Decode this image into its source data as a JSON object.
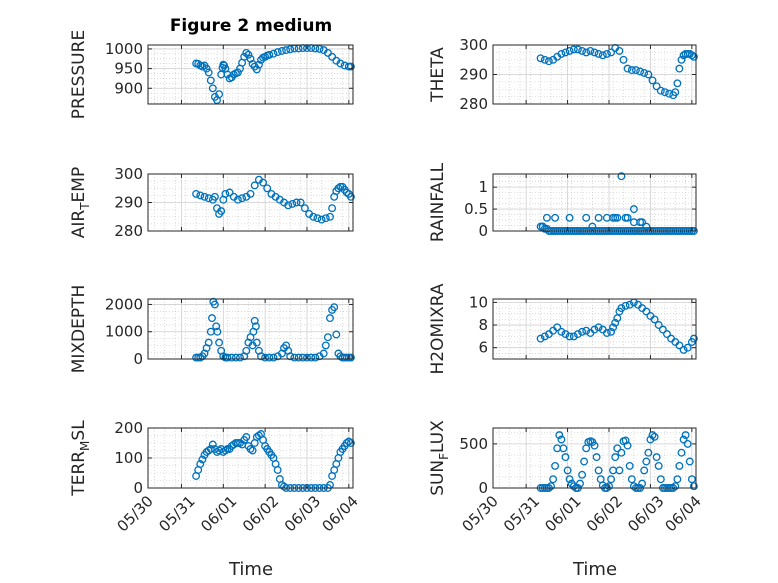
{
  "figure_title": "Figure 2 medium",
  "colors": {
    "marker": "#0072BD",
    "axis": "#262626",
    "grid": "#a0a0a0"
  },
  "chart_data": [
    {
      "type": "scatter",
      "ylabel": "PRESSURE",
      "ylim": [
        860,
        1010
      ],
      "yticks": [
        900,
        950,
        1000
      ],
      "ytick_labels": [
        "900",
        "950",
        "1000"
      ],
      "x": [
        0.25,
        0.3,
        0.35,
        0.4,
        0.45,
        0.5,
        0.55,
        0.6,
        0.65,
        0.7,
        0.75,
        0.8,
        0.85,
        0.88,
        0.9,
        0.92,
        0.95,
        1.0,
        1.05,
        1.1,
        1.15,
        1.2,
        1.25,
        1.3,
        1.35,
        1.4,
        1.45,
        1.5,
        1.55,
        1.6,
        1.65,
        1.7,
        1.75,
        1.8,
        1.85,
        1.9,
        1.95,
        2.0,
        2.1,
        2.2,
        2.3,
        2.4,
        2.5,
        2.6,
        2.7,
        2.8,
        2.9,
        3.0,
        3.1,
        3.2,
        3.3,
        3.4,
        3.5,
        3.6,
        3.7,
        3.8,
        3.9,
        3.95
      ],
      "y": [
        963,
        962,
        958,
        955,
        958,
        950,
        940,
        920,
        900,
        878,
        870,
        885,
        935,
        952,
        960,
        958,
        950,
        935,
        925,
        928,
        935,
        938,
        940,
        950,
        965,
        980,
        990,
        985,
        975,
        962,
        955,
        948,
        960,
        972,
        978,
        980,
        983,
        985,
        988,
        992,
        995,
        997,
        999,
        1001,
        1001,
        1002,
        1002,
        1002,
        1001,
        1000,
        997,
        990,
        980,
        970,
        963,
        958,
        955,
        955
      ]
    },
    {
      "type": "scatter",
      "ylabel": "THETA",
      "ylim": [
        280,
        300
      ],
      "yticks": [
        280,
        290,
        300
      ],
      "ytick_labels": [
        "280",
        "290",
        "300"
      ],
      "x": [
        0.25,
        0.35,
        0.45,
        0.55,
        0.65,
        0.75,
        0.85,
        0.95,
        1.05,
        1.15,
        1.25,
        1.35,
        1.45,
        1.55,
        1.65,
        1.75,
        1.85,
        1.95,
        2.05,
        2.15,
        2.25,
        2.35,
        2.45,
        2.55,
        2.65,
        2.75,
        2.85,
        2.95,
        3.05,
        3.15,
        3.25,
        3.35,
        3.45,
        3.5,
        3.55,
        3.6,
        3.65,
        3.7,
        3.75,
        3.8,
        3.85,
        3.9,
        3.95
      ],
      "y": [
        295.5,
        295,
        294.5,
        295,
        296,
        297,
        297.5,
        298,
        298.5,
        298.5,
        298,
        297.5,
        298,
        297.5,
        297,
        296.5,
        297,
        297.5,
        299,
        298,
        295,
        292,
        291.5,
        291.5,
        291,
        290.5,
        290,
        288,
        286,
        284.5,
        284,
        283.5,
        283,
        284,
        287,
        292,
        295,
        296.5,
        297,
        297,
        297,
        296.5,
        296
      ]
    },
    {
      "type": "scatter",
      "ylabel": "AIR_TEMP",
      "ylim": [
        280,
        300
      ],
      "yticks": [
        280,
        290,
        300
      ],
      "ytick_labels": [
        "280",
        "290",
        "300"
      ],
      "x": [
        0.25,
        0.35,
        0.45,
        0.55,
        0.65,
        0.7,
        0.75,
        0.8,
        0.85,
        0.9,
        0.95,
        1.05,
        1.15,
        1.25,
        1.35,
        1.45,
        1.55,
        1.65,
        1.75,
        1.85,
        1.95,
        2.05,
        2.15,
        2.25,
        2.35,
        2.45,
        2.55,
        2.65,
        2.75,
        2.85,
        2.95,
        3.05,
        3.15,
        3.25,
        3.35,
        3.45,
        3.5,
        3.55,
        3.6,
        3.65,
        3.7,
        3.75,
        3.8,
        3.85,
        3.9,
        3.95
      ],
      "y": [
        293,
        292.5,
        292,
        291.5,
        291,
        292,
        288,
        286,
        287,
        291,
        293,
        293.5,
        292,
        291,
        291.5,
        292,
        293,
        296,
        298,
        297,
        295,
        293,
        292,
        291,
        290,
        289,
        289.5,
        290,
        290,
        288,
        286,
        285,
        284.5,
        284,
        284.5,
        285,
        288,
        292,
        294,
        295,
        295.5,
        295.5,
        294.5,
        293.5,
        293,
        292
      ]
    },
    {
      "type": "scatter",
      "ylabel": "RAINFALL",
      "ylim": [
        0,
        1.3
      ],
      "yticks": [
        0,
        0.5,
        1
      ],
      "ytick_labels": [
        "0",
        "0.5",
        "1"
      ],
      "x": [
        0.25,
        0.3,
        0.35,
        0.4,
        0.45,
        0.5,
        0.55,
        0.6,
        0.65,
        0.7,
        0.75,
        0.8,
        0.85,
        0.9,
        0.95,
        1.0,
        1.05,
        1.1,
        1.15,
        1.2,
        1.25,
        1.3,
        1.35,
        1.4,
        1.45,
        1.5,
        1.55,
        1.6,
        1.65,
        1.7,
        1.75,
        1.8,
        1.85,
        1.9,
        1.95,
        2.0,
        2.05,
        2.1,
        2.15,
        2.2,
        2.25,
        2.3,
        2.35,
        2.4,
        2.45,
        2.5,
        2.55,
        2.6,
        2.65,
        2.7,
        2.75,
        2.8,
        2.85,
        2.9,
        2.95,
        3.0,
        3.05,
        3.1,
        3.15,
        3.2,
        3.25,
        3.3,
        3.35,
        3.4,
        3.45,
        3.5,
        3.55,
        3.6,
        3.65,
        3.7,
        3.75,
        3.8,
        3.85,
        3.9,
        3.95,
        0.4,
        0.6,
        0.95,
        1.35,
        1.65,
        1.85,
        2.0,
        2.05,
        2.1,
        2.2,
        2.3,
        2.35,
        2.5,
        2.65,
        2.7,
        2.8,
        1.5,
        2.5,
        0.3
      ],
      "y": [
        0.1,
        0.1,
        0.05,
        0.05,
        0,
        0,
        0,
        0,
        0,
        0,
        0,
        0,
        0,
        0,
        0,
        0,
        0,
        0,
        0,
        0,
        0,
        0,
        0,
        0,
        0,
        0,
        0,
        0,
        0,
        0,
        0,
        0,
        0,
        0,
        0,
        0,
        0,
        0,
        0,
        0,
        0,
        0,
        0,
        0,
        0,
        0,
        0,
        0,
        0,
        0,
        0,
        0,
        0,
        0,
        0,
        0,
        0,
        0,
        0,
        0,
        0,
        0,
        0,
        0,
        0,
        0,
        0,
        0,
        0,
        0,
        0,
        0,
        0,
        0,
        0,
        0.3,
        0.3,
        0.3,
        0.3,
        0.3,
        0.3,
        0.3,
        0.3,
        0.3,
        1.25,
        0.3,
        0.3,
        0.5,
        0.2,
        0.2,
        0.1,
        0.1,
        0.2,
        0.1
      ]
    },
    {
      "type": "scatter",
      "ylabel": "MIXDEPTH",
      "ylim": [
        0,
        2200
      ],
      "yticks": [
        0,
        1000,
        2000
      ],
      "ytick_labels": [
        "0",
        "1000",
        "2000"
      ],
      "x": [
        0.25,
        0.3,
        0.35,
        0.4,
        0.45,
        0.5,
        0.55,
        0.6,
        0.63,
        0.66,
        0.7,
        0.73,
        0.76,
        0.8,
        0.85,
        0.9,
        0.95,
        1.0,
        1.1,
        1.2,
        1.3,
        1.4,
        1.45,
        1.5,
        1.55,
        1.6,
        1.62,
        1.65,
        1.68,
        1.7,
        1.75,
        1.8,
        1.9,
        2.0,
        2.1,
        2.2,
        2.3,
        2.35,
        2.4,
        2.45,
        2.5,
        2.6,
        2.7,
        2.8,
        2.9,
        3.0,
        3.1,
        3.2,
        3.3,
        3.35,
        3.4,
        3.45,
        3.5,
        3.55,
        3.6,
        3.65,
        3.7,
        3.75,
        3.8,
        3.85,
        3.9,
        3.95
      ],
      "y": [
        50,
        50,
        50,
        100,
        200,
        400,
        600,
        1000,
        1500,
        2100,
        2000,
        1200,
        1000,
        600,
        300,
        100,
        50,
        50,
        50,
        50,
        50,
        100,
        300,
        600,
        800,
        500,
        1000,
        1400,
        1200,
        600,
        300,
        100,
        50,
        50,
        50,
        100,
        200,
        400,
        500,
        300,
        100,
        50,
        50,
        50,
        50,
        50,
        50,
        100,
        200,
        500,
        800,
        1500,
        1800,
        1900,
        900,
        200,
        100,
        50,
        50,
        50,
        50,
        50
      ]
    },
    {
      "type": "scatter",
      "ylabel": "H2OMIXRA",
      "ylim": [
        5,
        10.3
      ],
      "yticks": [
        6,
        8,
        10
      ],
      "ytick_labels": [
        "6",
        "8",
        "10"
      ],
      "x": [
        0.25,
        0.35,
        0.45,
        0.55,
        0.65,
        0.75,
        0.85,
        0.95,
        1.05,
        1.15,
        1.25,
        1.35,
        1.45,
        1.55,
        1.65,
        1.75,
        1.85,
        1.95,
        2.0,
        2.05,
        2.1,
        2.15,
        2.2,
        2.3,
        2.4,
        2.5,
        2.6,
        2.7,
        2.8,
        2.9,
        3.0,
        3.1,
        3.2,
        3.3,
        3.4,
        3.5,
        3.6,
        3.7,
        3.8,
        3.9,
        3.95
      ],
      "y": [
        6.8,
        7,
        7.2,
        7.5,
        7.8,
        7.4,
        7.2,
        7,
        7,
        7.2,
        7.4,
        7.5,
        7.3,
        7.6,
        7.8,
        7.6,
        7.3,
        7.4,
        7.8,
        8.2,
        8.6,
        9.2,
        9.5,
        9.7,
        9.8,
        10,
        9.8,
        9.5,
        9.2,
        8.8,
        8.5,
        8,
        7.6,
        7.2,
        6.8,
        6.5,
        6.2,
        5.8,
        6,
        6.5,
        6.8
      ]
    },
    {
      "type": "scatter",
      "ylabel": "TERR_MSL",
      "ylim": [
        0,
        200
      ],
      "yticks": [
        0,
        100,
        200
      ],
      "ytick_labels": [
        "0",
        "100",
        "200"
      ],
      "x": [
        0.25,
        0.3,
        0.35,
        0.4,
        0.45,
        0.5,
        0.55,
        0.6,
        0.65,
        0.7,
        0.75,
        0.8,
        0.85,
        0.9,
        0.95,
        1.0,
        1.05,
        1.1,
        1.15,
        1.2,
        1.25,
        1.3,
        1.35,
        1.4,
        1.45,
        1.5,
        1.55,
        1.6,
        1.65,
        1.7,
        1.75,
        1.8,
        1.85,
        1.9,
        1.95,
        2.0,
        2.05,
        2.1,
        2.15,
        2.2,
        2.25,
        2.3,
        2.35,
        2.4,
        2.5,
        2.6,
        2.7,
        2.8,
        2.9,
        3.0,
        3.1,
        3.2,
        3.3,
        3.4,
        3.45,
        3.5,
        3.55,
        3.6,
        3.65,
        3.7,
        3.75,
        3.8,
        3.85,
        3.9,
        3.95
      ],
      "y": [
        40,
        60,
        80,
        95,
        110,
        120,
        125,
        130,
        145,
        130,
        120,
        125,
        130,
        120,
        125,
        130,
        130,
        140,
        145,
        150,
        150,
        150,
        145,
        160,
        170,
        140,
        130,
        125,
        150,
        170,
        175,
        180,
        160,
        140,
        130,
        120,
        110,
        100,
        80,
        60,
        30,
        10,
        5,
        0,
        0,
        0,
        0,
        0,
        0,
        0,
        0,
        0,
        0,
        0,
        10,
        40,
        60,
        80,
        100,
        120,
        130,
        140,
        150,
        155,
        150
      ]
    },
    {
      "type": "scatter",
      "ylabel": "SUN_FLUX",
      "ylim": [
        0,
        680
      ],
      "yticks": [
        0,
        500
      ],
      "ytick_labels": [
        "0",
        "500"
      ],
      "x": [
        0.25,
        0.3,
        0.35,
        0.4,
        0.45,
        0.5,
        0.55,
        0.6,
        0.65,
        0.7,
        0.75,
        0.8,
        0.85,
        0.9,
        0.95,
        1.0,
        1.05,
        1.1,
        1.15,
        1.2,
        1.25,
        1.3,
        1.35,
        1.4,
        1.45,
        1.5,
        1.55,
        1.6,
        1.65,
        1.7,
        1.75,
        1.8,
        1.85,
        1.9,
        1.95,
        2.0,
        2.05,
        2.1,
        2.15,
        2.2,
        2.25,
        2.3,
        2.35,
        2.4,
        2.45,
        2.5,
        2.55,
        2.6,
        2.65,
        2.7,
        2.75,
        2.8,
        2.85,
        2.9,
        2.95,
        3.0,
        3.05,
        3.1,
        3.15,
        3.2,
        3.25,
        3.3,
        3.35,
        3.4,
        3.45,
        3.5,
        3.55,
        3.6,
        3.65,
        3.7,
        3.75,
        3.8,
        3.85,
        3.9,
        3.95
      ],
      "y": [
        0,
        0,
        0,
        0,
        0,
        20,
        100,
        250,
        450,
        600,
        550,
        450,
        350,
        200,
        100,
        50,
        20,
        0,
        0,
        50,
        150,
        300,
        450,
        520,
        530,
        520,
        480,
        350,
        200,
        100,
        30,
        0,
        0,
        20,
        100,
        200,
        350,
        450,
        200,
        400,
        530,
        540,
        480,
        250,
        100,
        20,
        0,
        0,
        0,
        50,
        200,
        300,
        400,
        550,
        600,
        580,
        350,
        250,
        100,
        0,
        0,
        0,
        0,
        0,
        0,
        20,
        100,
        250,
        400,
        550,
        600,
        500,
        300,
        100,
        20
      ]
    }
  ],
  "x_axis": {
    "xlim": [
      -0.9,
      4.0
    ],
    "ticks": [
      -0.1,
      0.9,
      1.9,
      2.9,
      3.9
    ],
    "tick_labels": [
      "05/30",
      "05/31",
      "06/01",
      "06/02",
      "06/03",
      "06/04"
    ],
    "tick_values": [
      -0.9,
      0.1,
      1.1,
      2.1,
      3.1,
      4.0
    ],
    "label": "Time"
  }
}
